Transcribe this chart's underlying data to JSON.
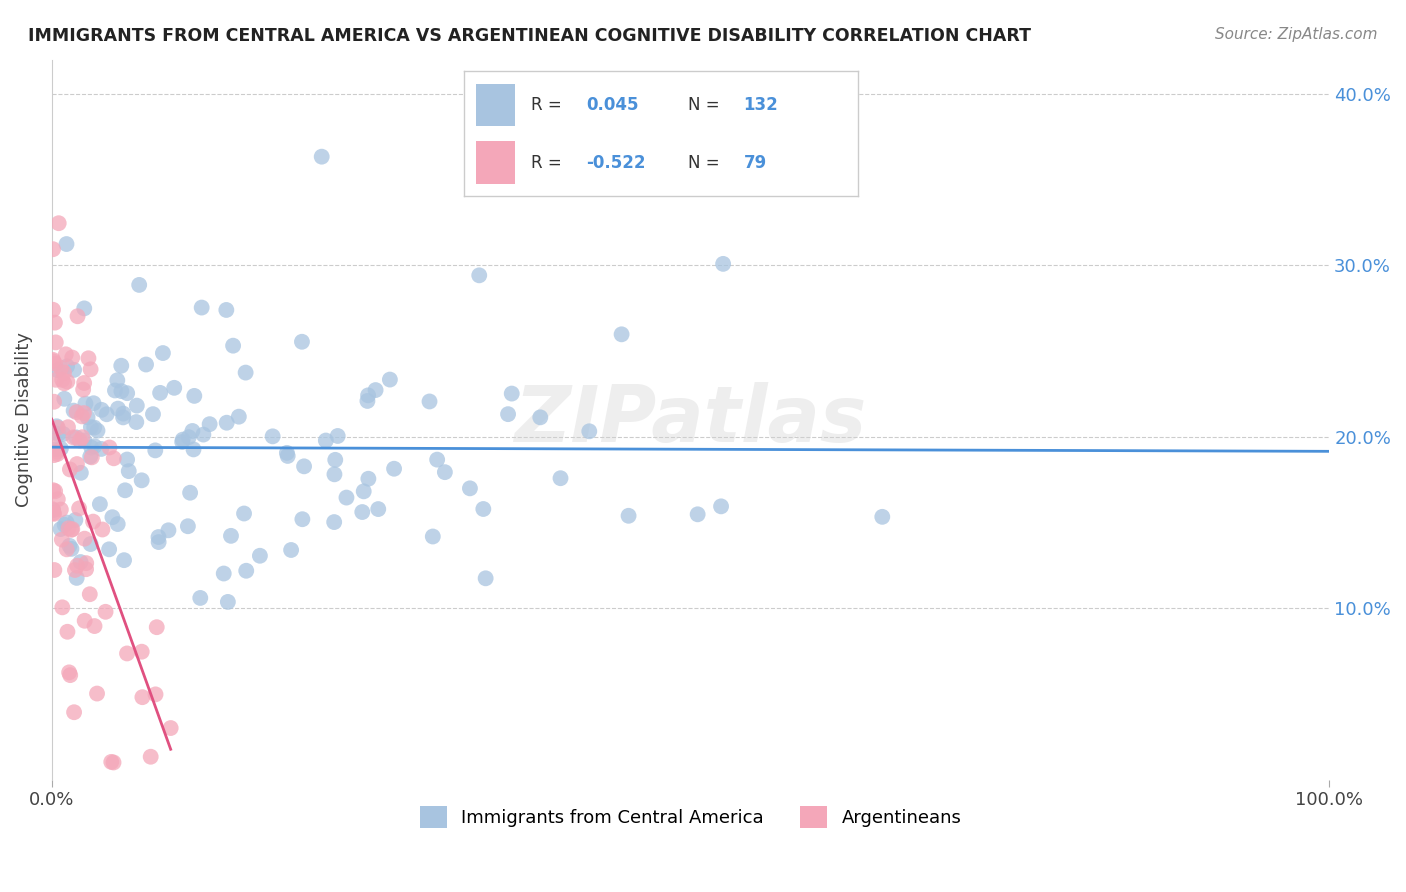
{
  "title": "IMMIGRANTS FROM CENTRAL AMERICA VS ARGENTINEAN COGNITIVE DISABILITY CORRELATION CHART",
  "source": "Source: ZipAtlas.com",
  "ylabel": "Cognitive Disability",
  "xlim": [
    0,
    1.0
  ],
  "ylim": [
    0,
    0.42
  ],
  "yticks": [
    0.1,
    0.2,
    0.3,
    0.4
  ],
  "ytick_labels": [
    "10.0%",
    "20.0%",
    "30.0%",
    "40.0%"
  ],
  "xtick_labels": [
    "0.0%",
    "100.0%"
  ],
  "blue_R": "0.045",
  "blue_N": "132",
  "pink_R": "-0.522",
  "pink_N": "79",
  "blue_color": "#a8c4e0",
  "pink_color": "#f4a7b9",
  "blue_line_color": "#4a90d9",
  "pink_line_color": "#e05080",
  "watermark": "ZIPatlas",
  "legend_labels": [
    "Immigrants from Central America",
    "Argentineans"
  ]
}
